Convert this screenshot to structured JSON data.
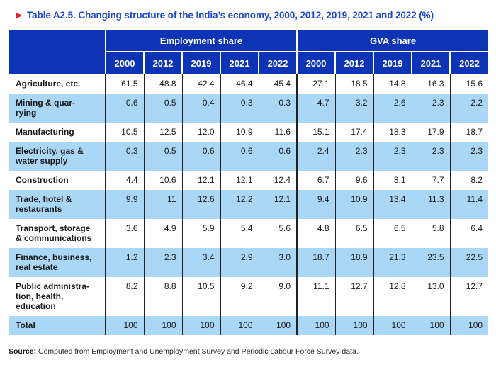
{
  "page": {
    "title": "Table A2.5. Changing structure of the India’s economy, 2000, 2012, 2019, 2021 and 2022 (%)"
  },
  "colors": {
    "header_blue": "#0c34b4",
    "band_blue": "#a9d7f5",
    "title_blue": "#1d49cc",
    "marker_red": "#e8212e"
  },
  "table": {
    "column_groups": [
      {
        "label": "Employment share"
      },
      {
        "label": "GVA share"
      }
    ],
    "year_columns": [
      "2000",
      "2012",
      "2019",
      "2021",
      "2022",
      "2000",
      "2012",
      "2019",
      "2021",
      "2022"
    ],
    "rows": [
      {
        "label": "Agriculture, etc.",
        "values": [
          "61.5",
          "48.8",
          "42.4",
          "46.4",
          "45.4",
          "27.1",
          "18.5",
          "14.8",
          "16.3",
          "15.6"
        ]
      },
      {
        "label": "Mining & quar-\nrying",
        "values": [
          "0.6",
          "0.5",
          "0.4",
          "0.3",
          "0.3",
          "4.7",
          "3.2",
          "2.6",
          "2.3",
          "2.2"
        ]
      },
      {
        "label": "Manufacturing",
        "values": [
          "10.5",
          "12.5",
          "12.0",
          "10.9",
          "11.6",
          "15.1",
          "17.4",
          "18.3",
          "17.9",
          "18.7"
        ]
      },
      {
        "label": "Electricity, gas &\nwater supply",
        "values": [
          "0.3",
          "0.5",
          "0.6",
          "0.6",
          "0.6",
          "2.4",
          "2.3",
          "2.3",
          "2.3",
          "2.3"
        ]
      },
      {
        "label": "Construction",
        "values": [
          "4.4",
          "10.6",
          "12.1",
          "12.1",
          "12.4",
          "6.7",
          "9.6",
          "8.1",
          "7.7",
          "8.2"
        ]
      },
      {
        "label": "Trade, hotel &\nrestaurants",
        "values": [
          "9.9",
          "11",
          "12.6",
          "12.2",
          "12.1",
          "9.4",
          "10.9",
          "13.4",
          "11.3",
          "11.4"
        ]
      },
      {
        "label": "Transport, storage\n& communications",
        "values": [
          "3.6",
          "4.9",
          "5.9",
          "5.4",
          "5.6",
          "4.8",
          "6.5",
          "6.5",
          "5.8",
          "6.4"
        ]
      },
      {
        "label": "Finance, business,\nreal estate",
        "values": [
          "1.2",
          "2.3",
          "3.4",
          "2.9",
          "3.0",
          "18.7",
          "18.9",
          "21.3",
          "23.5",
          "22.5"
        ]
      },
      {
        "label": "Public administra-\ntion, health,\neducation",
        "values": [
          "8.2",
          "8.8",
          "10.5",
          "9.2",
          "9.0",
          "11.1",
          "12.7",
          "12.8",
          "13.0",
          "12.7"
        ]
      },
      {
        "label": "Total",
        "values": [
          "100",
          "100",
          "100",
          "100",
          "100",
          "100",
          "100",
          "100",
          "100",
          "100"
        ]
      }
    ]
  },
  "source": {
    "label": "Source:",
    "text": " Computed from Employment and Unemployment Survey and Periodic Labour Force Survey data."
  }
}
